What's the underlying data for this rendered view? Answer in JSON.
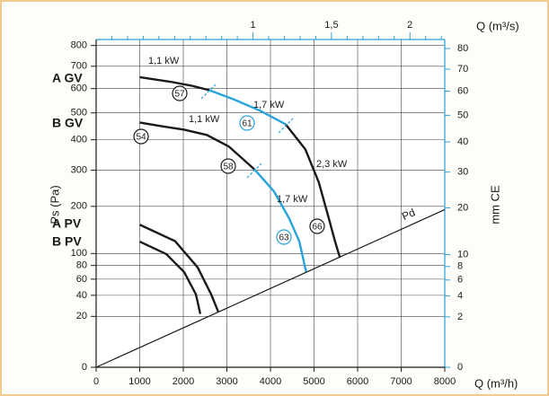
{
  "chart_data": {
    "type": "line",
    "xlabel": "Q (m³/h)",
    "x2label": "Q (m³/s)",
    "ylabel": "Ps (Pa)",
    "y2label": "mm CE",
    "xlim": [
      0,
      8000
    ],
    "xticks": [
      0,
      1000,
      2000,
      3000,
      4000,
      5000,
      6000,
      7000,
      8000
    ],
    "x2lim": [
      0,
      2.222
    ],
    "x2ticks": [
      1,
      {
        "value": 1.5,
        "label": "1,5"
      },
      2
    ],
    "x2minor_ticks": [
      0.1,
      0.2,
      0.3,
      0.4,
      0.5,
      0.6,
      0.7,
      0.8,
      0.9,
      1.1,
      1.2,
      1.3,
      1.4,
      1.6,
      1.7,
      1.8,
      1.9,
      2.1,
      2.2
    ],
    "ylim": [
      0,
      830
    ],
    "yscale": "sqrt",
    "yticks": [
      0,
      20,
      40,
      60,
      80,
      100,
      200,
      300,
      400,
      500,
      600,
      700,
      800
    ],
    "y2lim": [
      0,
      84.6
    ],
    "y2scale": "sqrt",
    "y2ticks": [
      0,
      2,
      4,
      6,
      8,
      10,
      20,
      30,
      40,
      50,
      60,
      70,
      80
    ],
    "grid": true,
    "curve_labels": [
      "A GV",
      "B GV",
      "A PV",
      "B PV"
    ],
    "curve_label_color": "#29a3dc",
    "power_labels": [
      "1,1 kW",
      "1,1 kW",
      "1,7 kW",
      "1,7 kW",
      "2,3 kW"
    ],
    "point_labels": [
      "57",
      "54",
      "61",
      "58",
      "66",
      "63"
    ],
    "series": [
      {
        "color": "#1a1a1a",
        "x": [
          1000,
          1700,
          2200,
          2600
        ],
        "values": [
          650,
          630,
          612,
          593
        ]
      },
      {
        "color": "#29a3dc",
        "x": [
          2600,
          3150,
          3770,
          4350
        ],
        "values": [
          593,
          555,
          508,
          456
        ]
      },
      {
        "color": "#1a1a1a",
        "x": [
          4350,
          4800,
          5110,
          5340,
          5480,
          5590
        ],
        "values": [
          456,
          367,
          264,
          171,
          123,
          94
        ]
      },
      {
        "color": "#1a1a1a",
        "x": [
          1000,
          1500,
          2020,
          2540,
          3050,
          3630
        ],
        "values": [
          463,
          449,
          436,
          417,
          376,
          303
        ]
      },
      {
        "color": "#29a3dc",
        "x": [
          3630,
          4080,
          4430,
          4660,
          4820
        ],
        "values": [
          303,
          239,
          171,
          123,
          70
        ]
      },
      {
        "color": "#1a1a1a",
        "x": [
          1000,
          1810,
          2330,
          2640,
          2800
        ],
        "values": [
          157,
          123,
          77,
          41,
          24
        ]
      },
      {
        "color": "#1a1a1a",
        "x": [
          1000,
          1610,
          2020,
          2290,
          2390
        ],
        "values": [
          122,
          99,
          70,
          41,
          22
        ]
      },
      {
        "name": "Pd",
        "color": "#1a1a1a",
        "x": [
          0,
          8000
        ],
        "values": [
          0,
          192
        ]
      }
    ]
  }
}
